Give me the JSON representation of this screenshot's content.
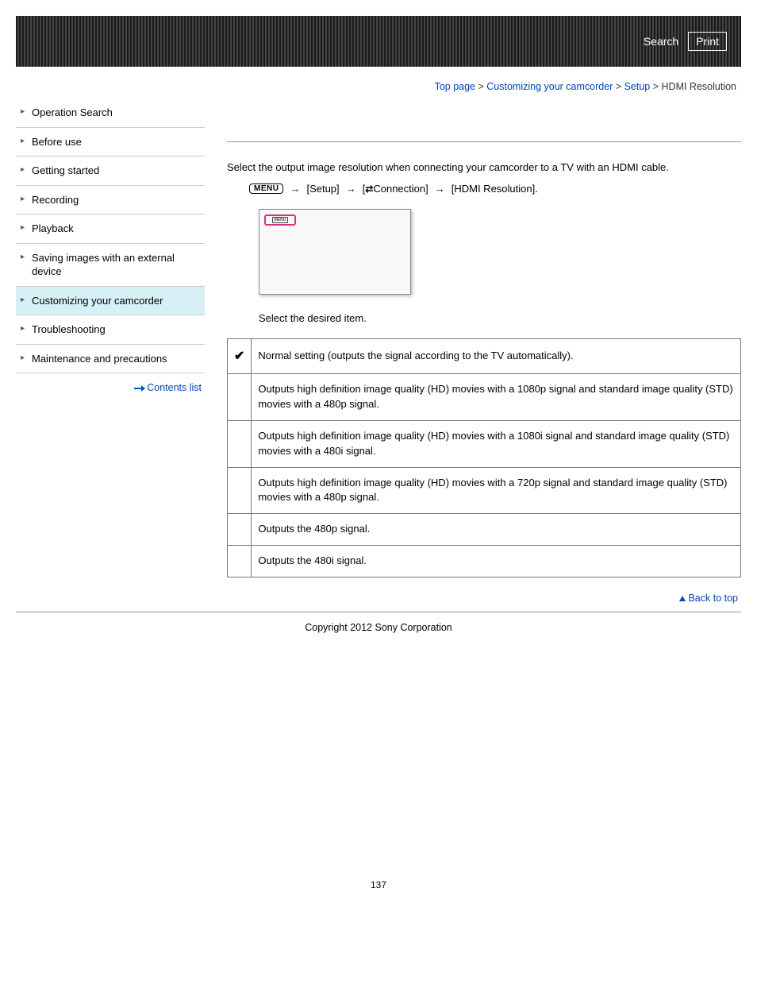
{
  "header": {
    "search_label": "Search",
    "print_label": "Print"
  },
  "breadcrumb": {
    "items": [
      "Top page",
      "Customizing your camcorder",
      "Setup"
    ],
    "current": "HDMI Resolution",
    "sep": " > "
  },
  "sidebar": {
    "items": [
      "Operation Search",
      "Before use",
      "Getting started",
      "Recording",
      "Playback",
      "Saving images with an external device",
      "Customizing your camcorder",
      "Troubleshooting",
      "Maintenance and precautions"
    ],
    "active_index": 6,
    "contents_list_label": "Contents list"
  },
  "main": {
    "intro": "Select the output image resolution when connecting your camcorder to a TV with an HDMI cable.",
    "menu_label": "MENU",
    "path_setup": "[Setup]",
    "path_connection_prefix": "[",
    "path_connection": "Connection]",
    "path_hdmi": "[HDMI Resolution].",
    "screen_label": "MENU",
    "step_text": "Select the desired item.",
    "options": [
      {
        "check": "✔",
        "text": "Normal setting (outputs the signal according to the TV automatically)."
      },
      {
        "check": "",
        "text": "Outputs high definition image quality (HD) movies with a 1080p signal and standard image quality (STD) movies with a 480p signal."
      },
      {
        "check": "",
        "text": "Outputs high definition image quality (HD) movies with a 1080i signal and standard image quality (STD) movies with a 480i signal."
      },
      {
        "check": "",
        "text": "Outputs high definition image quality (HD) movies with a 720p signal and standard image quality (STD) movies with a 480p signal."
      },
      {
        "check": "",
        "text": "Outputs the 480p signal."
      },
      {
        "check": "",
        "text": "Outputs the 480i signal."
      }
    ],
    "back_to_top": "Back to top"
  },
  "footer": {
    "copyright": "Copyright 2012 Sony Corporation",
    "page_number": "137"
  }
}
